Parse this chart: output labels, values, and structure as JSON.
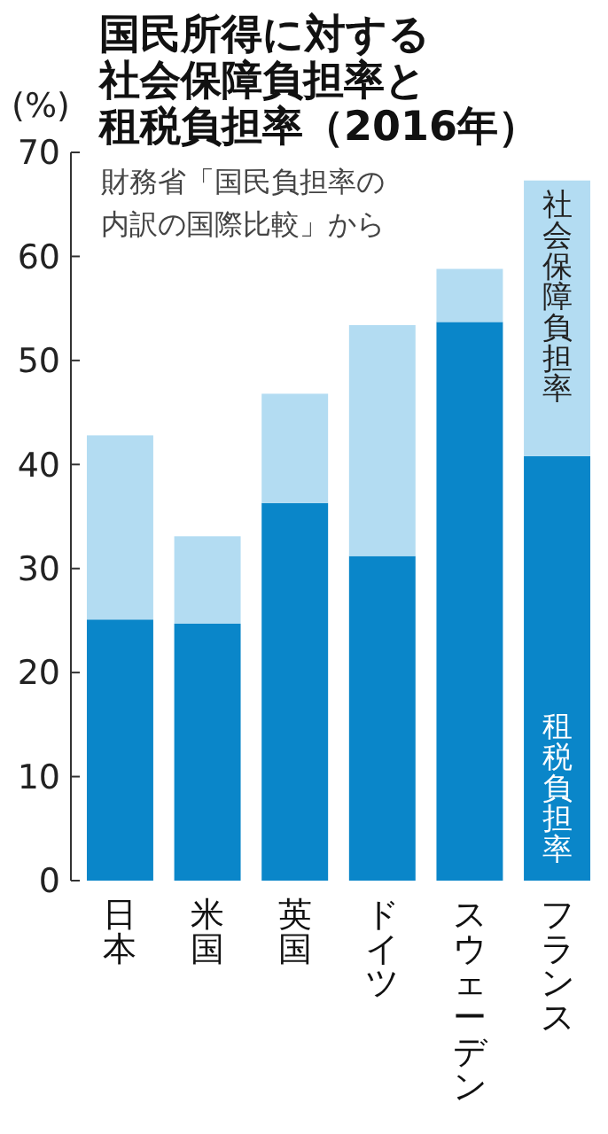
{
  "chart_data": {
    "type": "bar",
    "title": "国民所得に対する社会保障負担率と租税負担率（2016年）",
    "ylabel": "(%)",
    "annotations": [
      "財務省「国民負担率の内訳の国際比較」から"
    ],
    "categories": [
      "日本",
      "米国",
      "英国",
      "ドイツ",
      "スウェーデン",
      "フランス"
    ],
    "stacked": true,
    "ylim": [
      0,
      70
    ],
    "yticks": [
      0,
      10,
      20,
      30,
      40,
      50,
      60,
      70
    ],
    "series": [
      {
        "name": "租税負担率",
        "color": "#0a86c9",
        "values": [
          25.1,
          24.7,
          36.3,
          31.2,
          53.7,
          40.8
        ]
      },
      {
        "name": "社会保障負担率",
        "color": "#b3dcf2",
        "values": [
          17.7,
          8.4,
          10.5,
          22.2,
          5.1,
          26.5
        ]
      }
    ]
  }
}
